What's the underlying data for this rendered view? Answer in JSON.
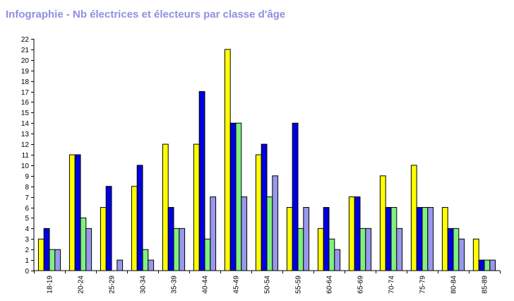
{
  "chart_data": {
    "type": "bar",
    "title": "Infographie - Nb électrices et électeurs par classe d'âge",
    "xlabel": "",
    "ylabel": "",
    "ylim": [
      0,
      22
    ],
    "y_ticks": [
      "0",
      "1",
      "2",
      "3",
      "4",
      "5",
      "6",
      "7",
      "8",
      "9",
      "10",
      "11",
      "12",
      "13",
      "14",
      "15",
      "16",
      "17",
      "18",
      "19",
      "20",
      "21",
      "22"
    ],
    "grid": false,
    "legend": "none",
    "categories": [
      "18-19",
      "20-24",
      "25-29",
      "30-34",
      "35-39",
      "40-44",
      "45-49",
      "50-54",
      "55-59",
      "60-64",
      "65-69",
      "70-74",
      "75-79",
      "80-84",
      "85-89"
    ],
    "series": [
      {
        "color": "#ffff00",
        "values": [
          3,
          11,
          6,
          8,
          12,
          12,
          21,
          11,
          6,
          4,
          7,
          9,
          10,
          6,
          3
        ]
      },
      {
        "color": "#0000e0",
        "values": [
          4,
          11,
          8,
          10,
          6,
          17,
          14,
          12,
          14,
          6,
          7,
          6,
          6,
          4,
          1
        ]
      },
      {
        "color": "#80f080",
        "values": [
          2,
          5,
          0,
          2,
          4,
          3,
          14,
          7,
          4,
          3,
          4,
          6,
          6,
          4,
          1
        ]
      },
      {
        "color": "#9898ec",
        "values": [
          2,
          4,
          1,
          1,
          4,
          7,
          7,
          9,
          6,
          2,
          4,
          4,
          6,
          3,
          1
        ]
      }
    ]
  }
}
